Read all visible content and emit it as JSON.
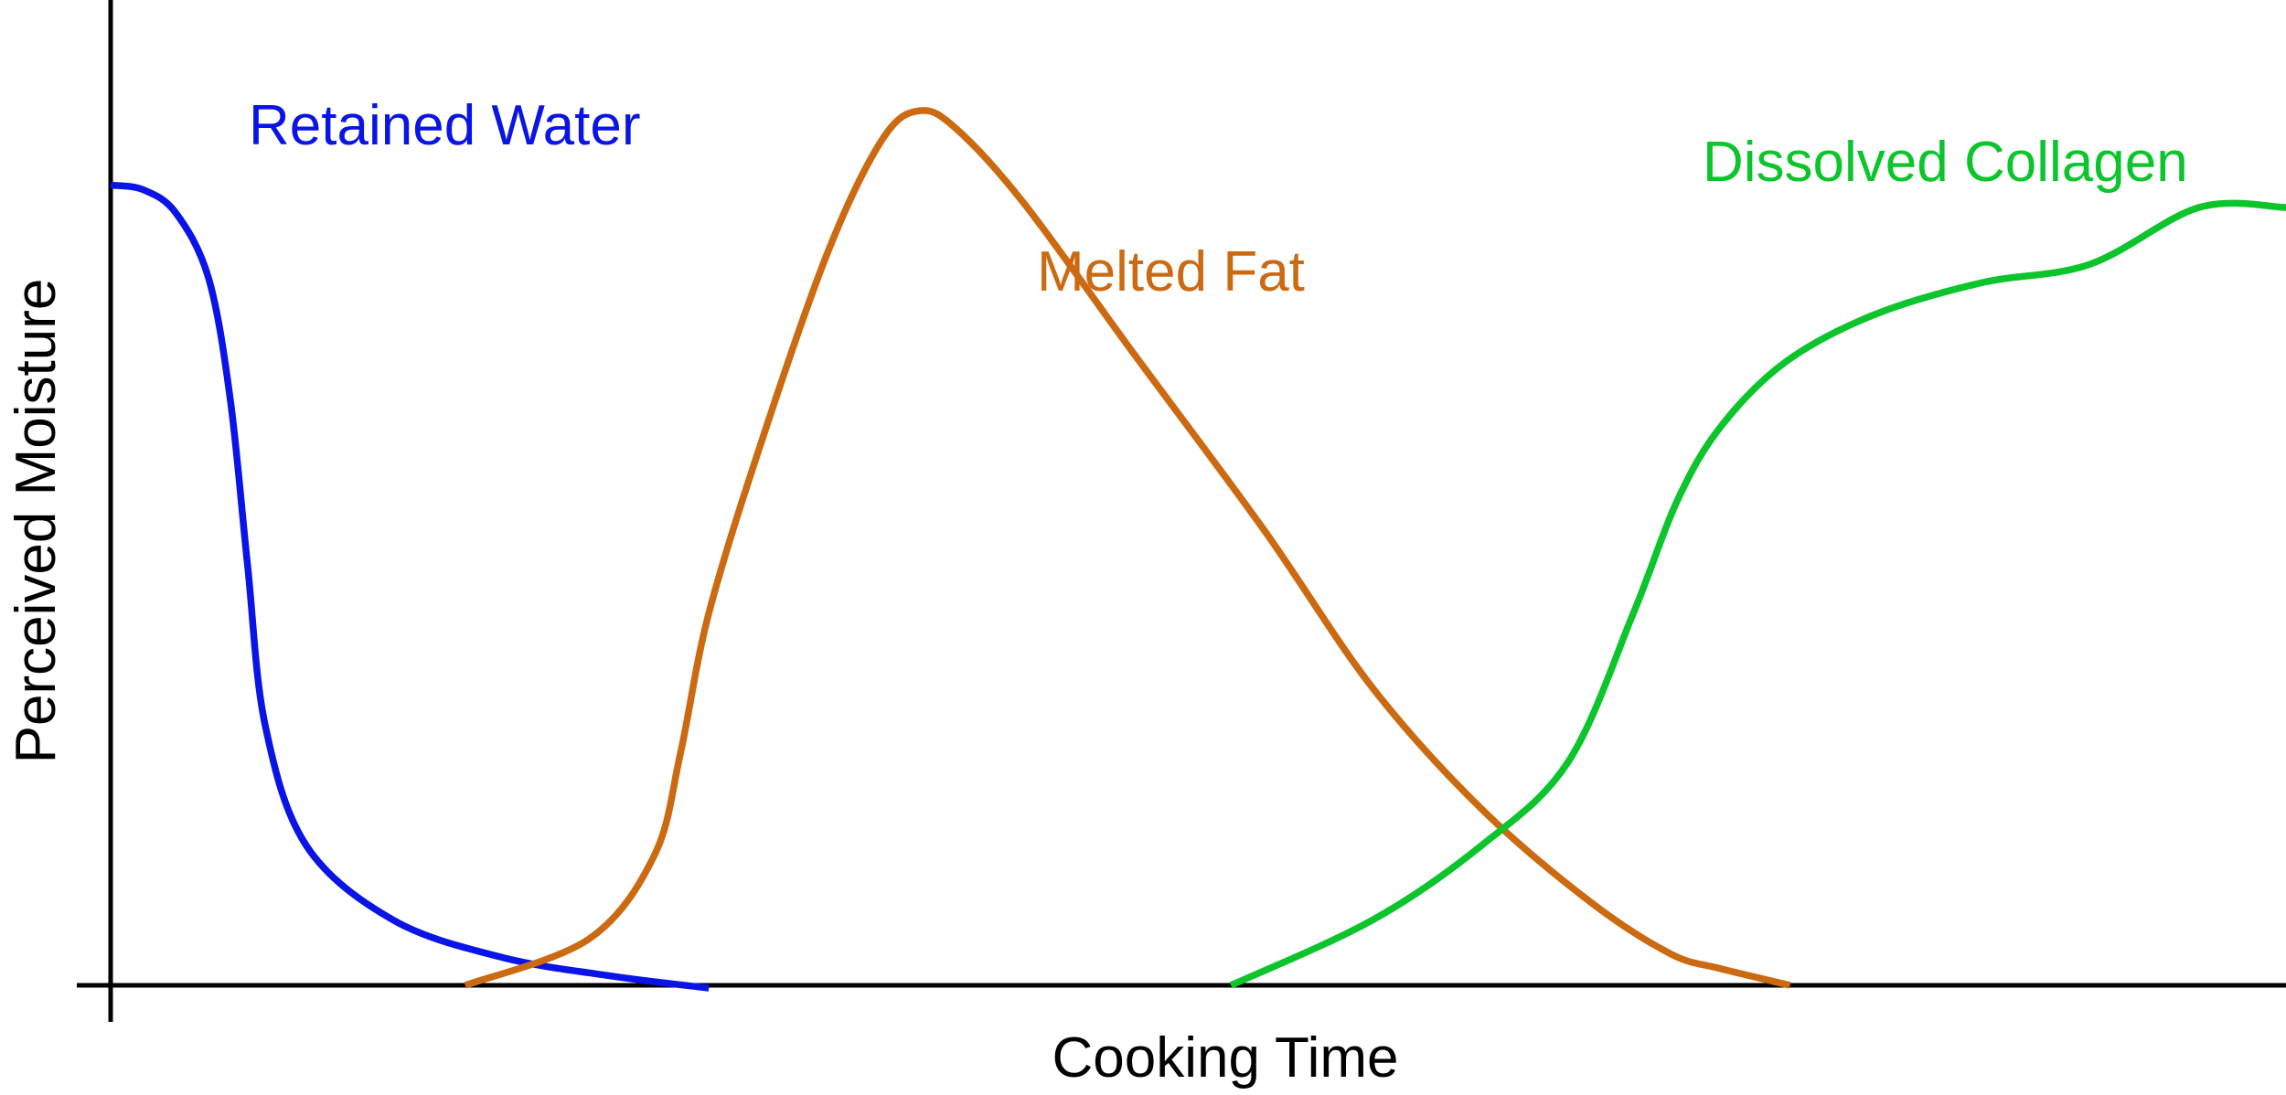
{
  "chart_data": {
    "type": "line",
    "title": "",
    "xlabel": "Cooking Time",
    "ylabel": "Perceived Moisture",
    "xlim": [
      0,
      100
    ],
    "ylim": [
      0,
      100
    ],
    "grid": false,
    "legend": "none (series labeled directly on the plot)",
    "axis_ticks": "none",
    "series": [
      {
        "name": "Retained Water",
        "color": "#0a14e6",
        "points": [
          [
            0,
            86
          ],
          [
            1.5,
            85.5
          ],
          [
            3,
            83
          ],
          [
            4.5,
            76
          ],
          [
            5.5,
            63
          ],
          [
            6.3,
            45
          ],
          [
            7.1,
            28
          ],
          [
            9,
            15
          ],
          [
            13,
            7
          ],
          [
            18,
            3
          ],
          [
            23,
            1
          ],
          [
            27.5,
            -0.3
          ]
        ]
      },
      {
        "name": "Melted Fat",
        "color": "#cc6a12",
        "points": [
          [
            16.3,
            0
          ],
          [
            22,
            5
          ],
          [
            25,
            14
          ],
          [
            26.2,
            25
          ],
          [
            27.5,
            40
          ],
          [
            30,
            59
          ],
          [
            33,
            79
          ],
          [
            35.5,
            91
          ],
          [
            37.2,
            94
          ],
          [
            38.9,
            92
          ],
          [
            42,
            84
          ],
          [
            47,
            68
          ],
          [
            53,
            49
          ],
          [
            58,
            32
          ],
          [
            63,
            19
          ],
          [
            68,
            9
          ],
          [
            71.7,
            3.4
          ],
          [
            74,
            1.8
          ],
          [
            77.2,
            0
          ]
        ]
      },
      {
        "name": "Dissolved Collagen",
        "color": "#0cc42c",
        "points": [
          [
            51.5,
            0
          ],
          [
            58,
            7
          ],
          [
            63,
            15
          ],
          [
            67,
            24
          ],
          [
            70,
            40
          ],
          [
            72,
            52
          ],
          [
            74,
            60
          ],
          [
            77,
            67
          ],
          [
            81,
            72
          ],
          [
            86,
            75.5
          ],
          [
            91,
            77.5
          ],
          [
            96,
            83.6
          ],
          [
            100,
            83.6
          ]
        ]
      }
    ]
  }
}
